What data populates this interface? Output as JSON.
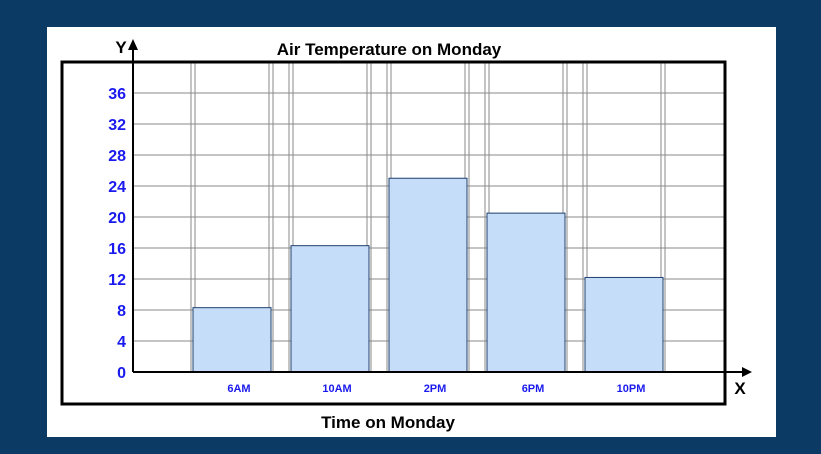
{
  "chart_data": {
    "type": "bar",
    "title": "Air Temperature on Monday",
    "xlabel": "Time on Monday",
    "x_axis_letter": "X",
    "y_axis_letter": "Y",
    "categories": [
      "6AM",
      "10AM",
      "2PM",
      "6PM",
      "10PM"
    ],
    "values": [
      8.3,
      16.3,
      25,
      20.5,
      12.2
    ],
    "ylim": [
      0,
      36
    ],
    "yticks": [
      "0",
      "4",
      "8",
      "12",
      "16",
      "20",
      "24",
      "28",
      "32",
      "36"
    ],
    "grid": true,
    "legend": "none",
    "colors": {
      "bar_fill": "#c5ddf8",
      "bar_stroke": "#1f3f6e",
      "grid": "#8a8a8a",
      "tick_label": "#1a1aee",
      "background": "#0b3a64"
    }
  }
}
